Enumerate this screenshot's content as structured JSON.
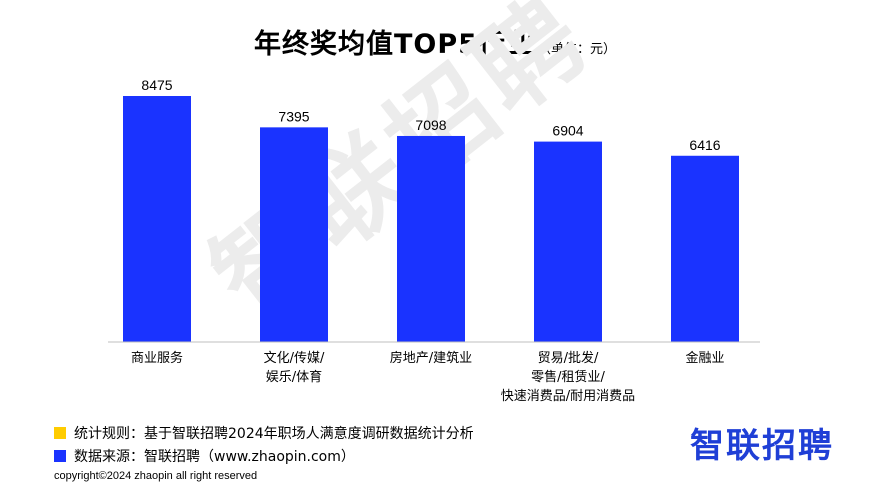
{
  "header": {
    "title": "年终奖均值TOP5行业",
    "unit": "（单位：元）"
  },
  "watermark": "智联招聘",
  "chart_data": {
    "type": "bar",
    "categories": [
      [
        "商业服务"
      ],
      [
        "文化/传媒/",
        "娱乐/体育"
      ],
      [
        "房地产/建筑业"
      ],
      [
        "贸易/批发/",
        "零售/租赁业/",
        "快速消费品/耐用消费品"
      ],
      [
        "金融业"
      ]
    ],
    "values": [
      8475,
      7395,
      7098,
      6904,
      6416
    ],
    "value_labels": [
      "8475",
      "7395",
      "7098",
      "6904",
      "6416"
    ],
    "bar_color": "#1a33ff"
  },
  "footer": {
    "rule_label": "统计规则：基于智联招聘2024年职场人满意度调研数据统计分析",
    "rule_color": "#ffcc00",
    "source_label": "数据来源：智联招聘（www.zhaopin.com）",
    "source_color": "#1a33ff",
    "brand": "智联招聘",
    "copyright": "copyright©2024 zhaopin all right reserved"
  }
}
